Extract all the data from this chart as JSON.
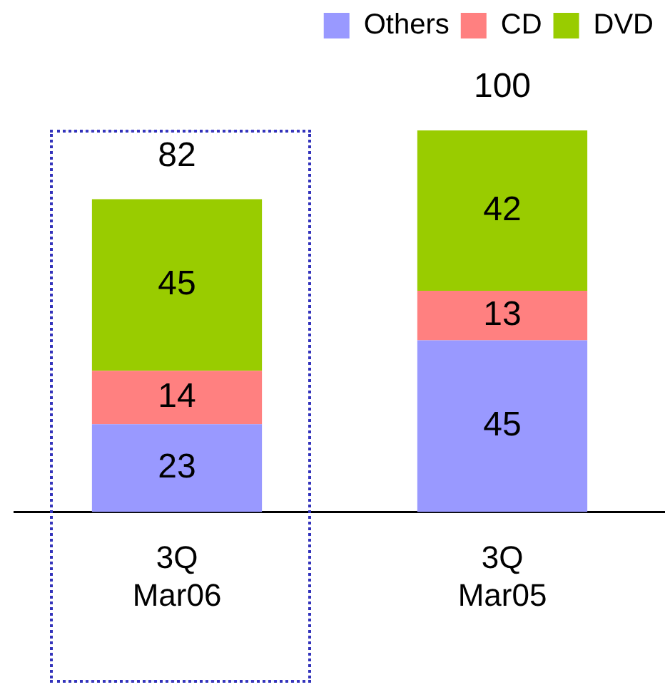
{
  "chart_data": {
    "type": "bar",
    "stacked": true,
    "categories": [
      "3Q\nMar06",
      "3Q\nMar05"
    ],
    "series": [
      {
        "name": "Others",
        "color": "#9999ff",
        "values": [
          23,
          45
        ]
      },
      {
        "name": "CD",
        "color": "#ff8080",
        "values": [
          14,
          13
        ]
      },
      {
        "name": "DVD",
        "color": "#99cc00",
        "values": [
          45,
          42
        ]
      }
    ],
    "data_labels": true,
    "totals": [
      "82",
      "100"
    ],
    "legend": "top right",
    "grid": false
  }
}
